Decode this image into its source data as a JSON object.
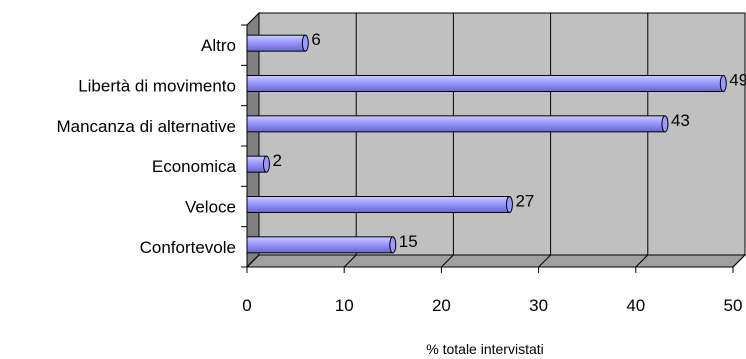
{
  "chart_data": {
    "type": "bar",
    "orientation": "horizontal",
    "style": "3d-cylinder",
    "categories": [
      "Altro",
      "Libertà di movimento",
      "Mancanza di alternative",
      "Economica",
      "Veloce",
      "Confortevole"
    ],
    "values": [
      6,
      49,
      43,
      2,
      27,
      15
    ],
    "data_labels": [
      "6",
      "49",
      "43",
      "2",
      "27",
      "15"
    ],
    "xlim": [
      0,
      50
    ],
    "xticks": [
      0,
      10,
      20,
      30,
      40,
      50
    ],
    "xtick_labels": [
      "0",
      "10",
      "20",
      "30",
      "40",
      "50"
    ],
    "xlabel": "% totale intervistati",
    "title": "",
    "ylabel": "",
    "grid": "vertical",
    "legend": "none",
    "colors": {
      "bar_fill": "#9999ff",
      "bar_highlight": "#ccccff",
      "bar_shade": "#6666cc",
      "plot_back": "#c0c0c0",
      "plot_side": "#808080",
      "plot_floor": "#a0a0a0"
    }
  }
}
